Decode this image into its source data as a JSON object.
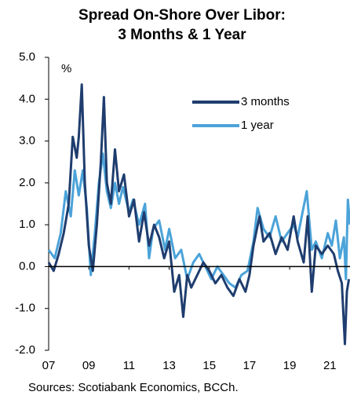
{
  "chart_data": {
    "type": "line",
    "title": [
      "Spread On-Shore Over Libor:",
      "3 Months & 1 Year"
    ],
    "y_label": "%",
    "source": "Sources: Scotiabank Economics, BCCh.",
    "xlim": [
      2007,
      2022.2
    ],
    "xticks": [
      {
        "value": 2007,
        "label": "07"
      },
      {
        "value": 2009,
        "label": "09"
      },
      {
        "value": 2011,
        "label": "11"
      },
      {
        "value": 2013,
        "label": "13"
      },
      {
        "value": 2015,
        "label": "15"
      },
      {
        "value": 2017,
        "label": "17"
      },
      {
        "value": 2019,
        "label": "19"
      },
      {
        "value": 2021,
        "label": "21"
      }
    ],
    "ylim": [
      -2,
      5
    ],
    "yticks": [
      {
        "value": 5,
        "label": "5.0"
      },
      {
        "value": 4,
        "label": "4.0"
      },
      {
        "value": 3,
        "label": "3.0"
      },
      {
        "value": 2,
        "label": "2.0"
      },
      {
        "value": 1,
        "label": "1.0"
      },
      {
        "value": 0,
        "label": "0.0"
      },
      {
        "value": -1,
        "label": "-1.0"
      },
      {
        "value": -2,
        "label": "-2.0"
      }
    ],
    "legend": "top-right",
    "series": [
      {
        "name": "3 months",
        "color": "#1f3d6e",
        "x": [
          2007.0,
          2007.25,
          2007.5,
          2007.75,
          2008.0,
          2008.2,
          2008.4,
          2008.5,
          2008.65,
          2008.8,
          2009.0,
          2009.2,
          2009.4,
          2009.6,
          2009.75,
          2009.9,
          2010.1,
          2010.3,
          2010.5,
          2010.75,
          2011.0,
          2011.25,
          2011.5,
          2011.75,
          2012.0,
          2012.25,
          2012.5,
          2012.75,
          2013.0,
          2013.25,
          2013.5,
          2013.7,
          2013.9,
          2014.1,
          2014.4,
          2014.7,
          2015.0,
          2015.3,
          2015.6,
          2015.9,
          2016.2,
          2016.5,
          2016.8,
          2017.0,
          2017.2,
          2017.5,
          2017.7,
          2018.0,
          2018.3,
          2018.6,
          2018.9,
          2019.2,
          2019.4,
          2019.7,
          2019.9,
          2020.1,
          2020.3,
          2020.6,
          2020.9,
          2021.2,
          2021.4,
          2021.6,
          2021.75,
          2021.85,
          2021.95
        ],
        "values": [
          0.1,
          -0.1,
          0.3,
          0.8,
          1.5,
          3.1,
          2.6,
          3.1,
          4.35,
          2.0,
          0.5,
          -0.1,
          1.0,
          2.5,
          4.05,
          2.0,
          1.5,
          2.8,
          1.8,
          2.2,
          1.2,
          1.6,
          0.6,
          1.3,
          0.5,
          1.0,
          0.7,
          0.2,
          0.6,
          -0.6,
          -0.2,
          -1.2,
          -0.2,
          -0.5,
          -0.2,
          0.1,
          -0.1,
          -0.4,
          -0.2,
          -0.5,
          -0.7,
          -0.3,
          -0.6,
          -0.2,
          0.5,
          1.2,
          0.6,
          0.8,
          0.3,
          0.7,
          0.4,
          1.2,
          0.6,
          0.1,
          1.2,
          -0.6,
          0.5,
          0.3,
          0.5,
          0.3,
          -0.1,
          -0.4,
          -1.85,
          -0.6,
          -0.3
        ]
      },
      {
        "name": "1 year",
        "color": "#4ba3d9",
        "x": [
          2007.0,
          2007.3,
          2007.6,
          2007.85,
          2008.1,
          2008.3,
          2008.5,
          2008.7,
          2008.9,
          2009.1,
          2009.3,
          2009.5,
          2009.7,
          2009.9,
          2010.1,
          2010.3,
          2010.5,
          2010.7,
          2011.0,
          2011.2,
          2011.5,
          2011.8,
          2012.0,
          2012.2,
          2012.5,
          2012.8,
          2013.0,
          2013.3,
          2013.6,
          2013.9,
          2014.2,
          2014.5,
          2014.8,
          2015.1,
          2015.4,
          2015.7,
          2016.0,
          2016.3,
          2016.6,
          2016.9,
          2017.2,
          2017.4,
          2017.7,
          2018.0,
          2018.3,
          2018.6,
          2018.9,
          2019.2,
          2019.4,
          2019.6,
          2019.85,
          2020.1,
          2020.3,
          2020.6,
          2020.9,
          2021.1,
          2021.3,
          2021.5,
          2021.7,
          2021.8,
          2021.9,
          2022.0
        ],
        "values": [
          0.4,
          0.2,
          0.8,
          1.8,
          1.2,
          2.3,
          1.7,
          2.3,
          1.4,
          -0.2,
          0.8,
          2.0,
          2.7,
          1.8,
          1.4,
          2.0,
          1.5,
          1.9,
          1.3,
          1.6,
          1.0,
          1.5,
          0.2,
          0.9,
          1.1,
          0.4,
          0.9,
          0.2,
          0.4,
          -0.3,
          0.1,
          0.3,
          0.0,
          -0.3,
          0.0,
          -0.2,
          -0.4,
          -0.5,
          -0.2,
          -0.1,
          0.6,
          1.4,
          0.9,
          0.7,
          1.2,
          0.6,
          0.8,
          1.0,
          0.7,
          1.2,
          1.8,
          0.4,
          0.6,
          0.2,
          0.8,
          0.5,
          1.1,
          0.2,
          0.7,
          -0.3,
          1.6,
          1.0
        ]
      }
    ]
  }
}
